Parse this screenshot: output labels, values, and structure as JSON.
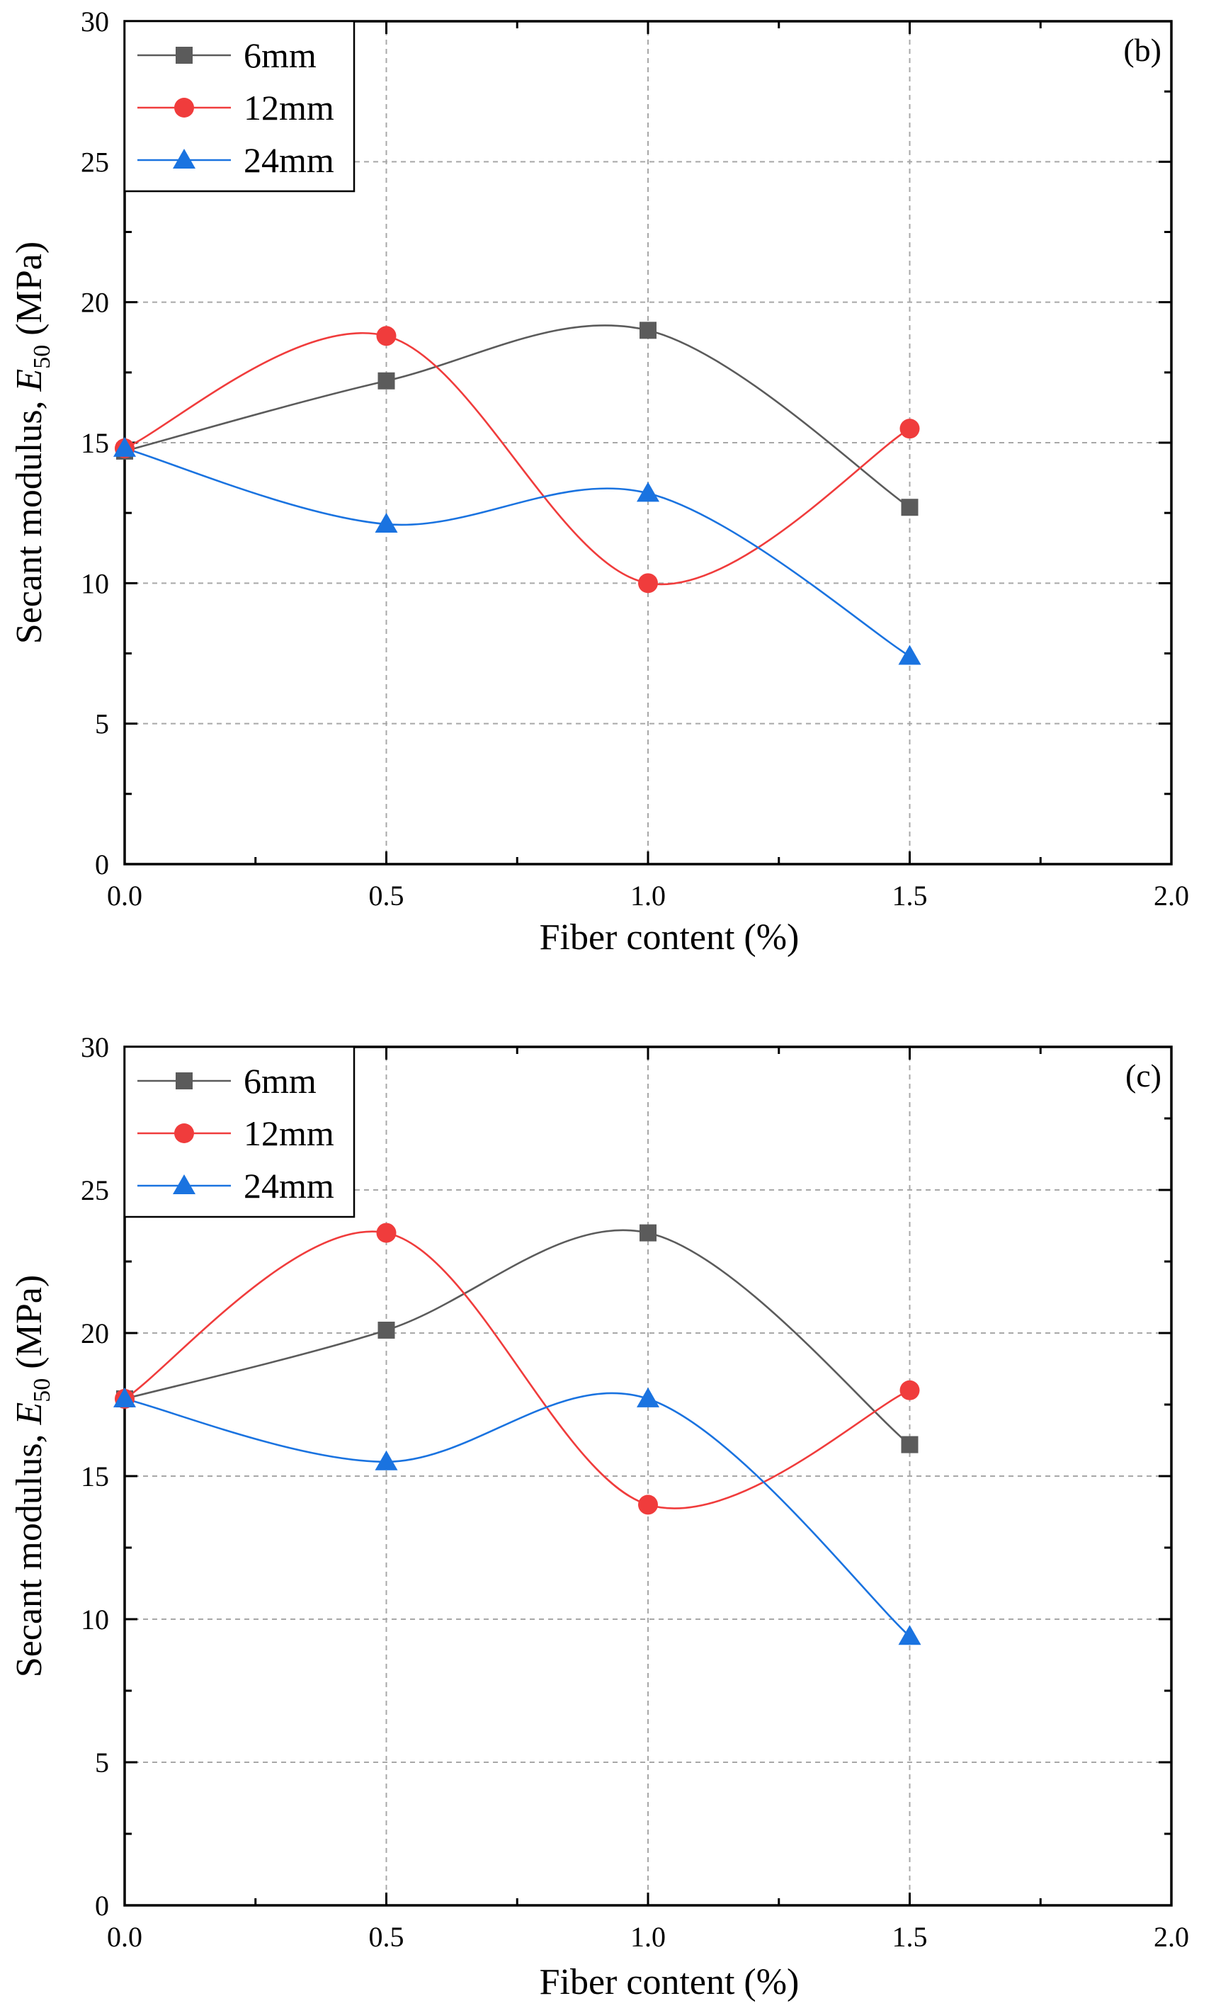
{
  "chart_data": [
    {
      "type": "line",
      "panel_label": "(b)",
      "xlabel": "Fiber content (%)",
      "ylabel_prefix": "Secant modulus, ",
      "ylabel_var": "E",
      "ylabel_sub": "50",
      "ylabel_suffix": " (MPa)",
      "xlim": [
        0,
        2.0
      ],
      "ylim": [
        0,
        30
      ],
      "xticks": [
        0.0,
        0.5,
        1.0,
        1.5,
        2.0
      ],
      "xtick_labels": [
        "0.0",
        "0.5",
        "1.0",
        "1.5",
        "2.0"
      ],
      "yticks": [
        0,
        5,
        10,
        15,
        20,
        25,
        30
      ],
      "ytick_labels": [
        "0",
        "5",
        "10",
        "15",
        "20",
        "25",
        "30"
      ],
      "grid": true,
      "legend_position": "top-left",
      "x": [
        0,
        0.5,
        1.0,
        1.5
      ],
      "series": [
        {
          "name": "6mm",
          "values": [
            14.7,
            17.2,
            19.0,
            12.7
          ],
          "color": "#5b5b5b",
          "marker": "square"
        },
        {
          "name": "12mm",
          "values": [
            14.8,
            18.8,
            10.0,
            15.5
          ],
          "color": "#f03c3c",
          "marker": "circle"
        },
        {
          "name": "24mm",
          "values": [
            14.8,
            12.1,
            13.2,
            7.4
          ],
          "color": "#1a73e0",
          "marker": "triangle"
        }
      ]
    },
    {
      "type": "line",
      "panel_label": "(c)",
      "xlabel": "Fiber content (%)",
      "ylabel_prefix": "Secant modulus, ",
      "ylabel_var": "E",
      "ylabel_sub": "50",
      "ylabel_suffix": " (MPa)",
      "xlim": [
        0,
        2.0
      ],
      "ylim": [
        0,
        30
      ],
      "xticks": [
        0.0,
        0.5,
        1.0,
        1.5,
        2.0
      ],
      "xtick_labels": [
        "0.0",
        "0.5",
        "1.0",
        "1.5",
        "2.0"
      ],
      "yticks": [
        0,
        5,
        10,
        15,
        20,
        25,
        30
      ],
      "ytick_labels": [
        "0",
        "5",
        "10",
        "15",
        "20",
        "25",
        "30"
      ],
      "grid": true,
      "legend_position": "top-left",
      "x": [
        0,
        0.5,
        1.0,
        1.5
      ],
      "series": [
        {
          "name": "6mm",
          "values": [
            17.7,
            20.1,
            23.5,
            16.1
          ],
          "color": "#5b5b5b",
          "marker": "square"
        },
        {
          "name": "12mm",
          "values": [
            17.7,
            23.5,
            14.0,
            18.0
          ],
          "color": "#f03c3c",
          "marker": "circle"
        },
        {
          "name": "24mm",
          "values": [
            17.7,
            15.5,
            17.7,
            9.4
          ],
          "color": "#1a73e0",
          "marker": "triangle"
        }
      ]
    }
  ]
}
